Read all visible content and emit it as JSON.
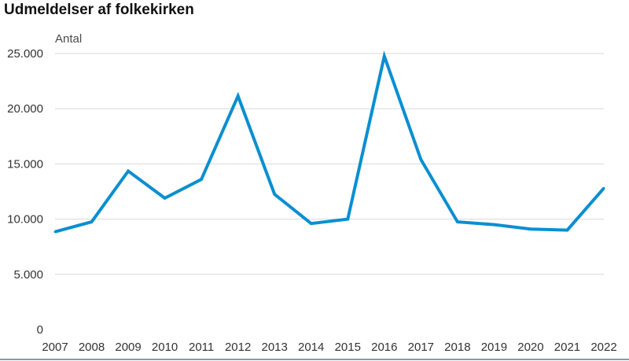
{
  "chart_data": {
    "type": "line",
    "title": "Udmeldelser af folkekirken",
    "xlabel": "",
    "ylabel": "Antal",
    "categories": [
      "2007",
      "2008",
      "2009",
      "2010",
      "2011",
      "2012",
      "2013",
      "2014",
      "2015",
      "2016",
      "2017",
      "2018",
      "2019",
      "2020",
      "2021",
      "2022"
    ],
    "series": [
      {
        "values": [
          8850,
          9750,
          14350,
          11900,
          13600,
          21150,
          12250,
          9600,
          10000,
          24750,
          15400,
          9750,
          9500,
          9100,
          9000,
          12800
        ]
      }
    ],
    "ylim": [
      0,
      25000
    ],
    "yticks": [
      0,
      5000,
      10000,
      15000,
      20000,
      25000
    ],
    "ytick_labels": [
      "0",
      "5.000",
      "10.000",
      "15.000",
      "20.000",
      "25.000"
    ],
    "grid": true,
    "line_color": "#0a8fd0",
    "grid_color": "#d9d9d9"
  }
}
